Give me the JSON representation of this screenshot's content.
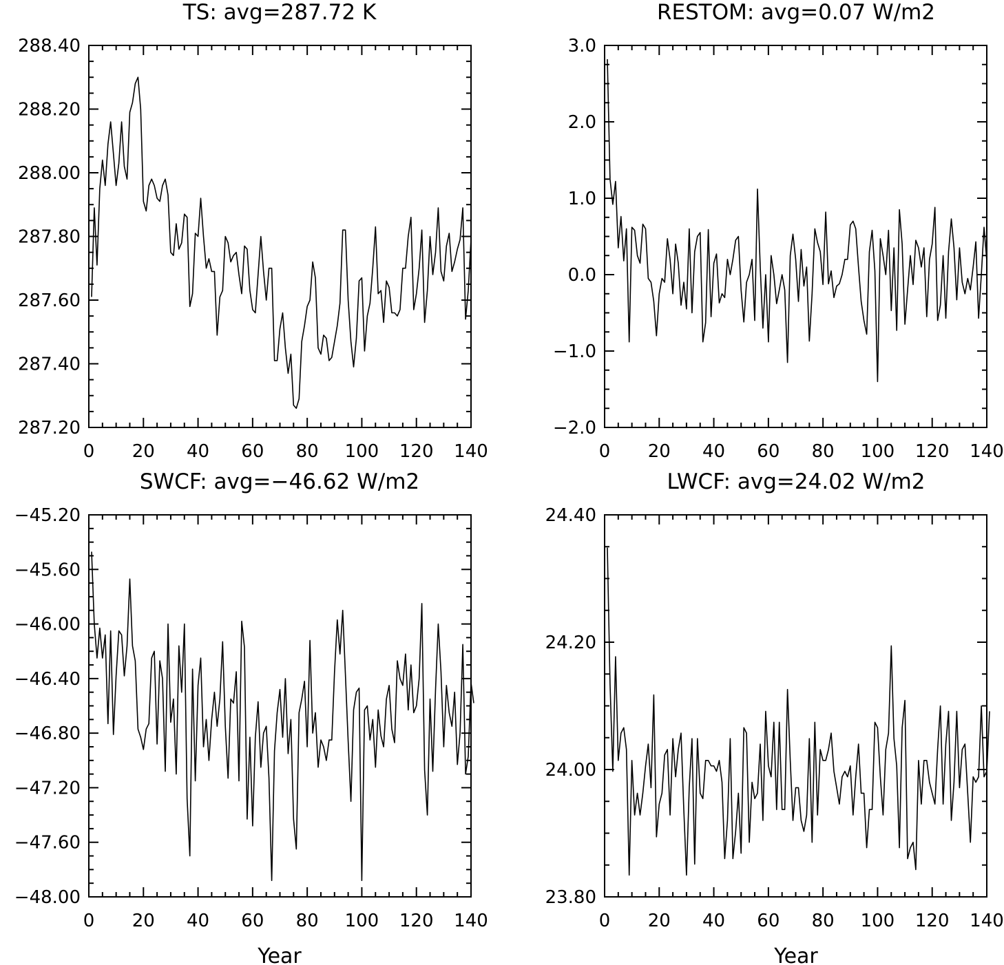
{
  "chart_data": [
    {
      "type": "line",
      "title": "TS: avg=287.72 K",
      "xlabel": "",
      "xlim": [
        0,
        140
      ],
      "ylim": [
        287.2,
        288.4
      ],
      "xticks": [
        "0",
        "20",
        "40",
        "60",
        "80",
        "100",
        "120",
        "140"
      ],
      "yticks": [
        "287.20",
        "287.40",
        "287.60",
        "287.80",
        "288.00",
        "288.20",
        "288.40"
      ],
      "series": [
        {
          "x_start": 1,
          "x_step": 1,
          "values": [
            287.61,
            287.89,
            287.71,
            287.95,
            288.04,
            287.96,
            288.09,
            288.16,
            288.06,
            287.96,
            288.03,
            288.16,
            288.02,
            287.98,
            288.19,
            288.22,
            288.28,
            288.3,
            288.2,
            287.91,
            287.88,
            287.96,
            287.98,
            287.96,
            287.92,
            287.91,
            287.96,
            287.98,
            287.93,
            287.75,
            287.74,
            287.84,
            287.76,
            287.78,
            287.87,
            287.86,
            287.58,
            287.62,
            287.81,
            287.8,
            287.92,
            287.8,
            287.7,
            287.73,
            287.69,
            287.69,
            287.49,
            287.61,
            287.63,
            287.8,
            287.78,
            287.72,
            287.74,
            287.75,
            287.68,
            287.62,
            287.77,
            287.76,
            287.63,
            287.57,
            287.56,
            287.68,
            287.8,
            287.69,
            287.6,
            287.7,
            287.7,
            287.41,
            287.41,
            287.51,
            287.56,
            287.45,
            287.37,
            287.43,
            287.27,
            287.26,
            287.29,
            287.47,
            287.52,
            287.58,
            287.6,
            287.72,
            287.67,
            287.45,
            287.43,
            287.49,
            287.48,
            287.41,
            287.42,
            287.47,
            287.52,
            287.59,
            287.82,
            287.82,
            287.6,
            287.47,
            287.39,
            287.48,
            287.66,
            287.67,
            287.44,
            287.55,
            287.59,
            287.7,
            287.83,
            287.62,
            287.63,
            287.53,
            287.66,
            287.64,
            287.56,
            287.56,
            287.55,
            287.57,
            287.7,
            287.7,
            287.8,
            287.86,
            287.57,
            287.62,
            287.7,
            287.82,
            287.53,
            287.63,
            287.8,
            287.68,
            287.75,
            287.89,
            287.69,
            287.66,
            287.77,
            287.81,
            287.69,
            287.72,
            287.76,
            287.79,
            287.89,
            287.54,
            287.63,
            287.79
          ]
        }
      ]
    },
    {
      "type": "line",
      "title": "RESTOM: avg=0.07 W/m2",
      "xlabel": "",
      "xlim": [
        0,
        140
      ],
      "ylim": [
        -2.0,
        3.0
      ],
      "xticks": [
        "0",
        "20",
        "40",
        "60",
        "80",
        "100",
        "120",
        "140"
      ],
      "yticks": [
        "−2.0",
        "−1.0",
        "0.0",
        "1.0",
        "2.0",
        "3.0"
      ],
      "series": [
        {
          "x_start": 1,
          "x_step": 1,
          "values": [
            2.82,
            1.25,
            0.92,
            1.22,
            0.35,
            0.76,
            0.18,
            0.6,
            -0.88,
            0.62,
            0.58,
            0.25,
            0.15,
            0.66,
            0.6,
            -0.05,
            -0.1,
            -0.35,
            -0.8,
            -0.25,
            -0.05,
            -0.1,
            0.47,
            0.2,
            -0.25,
            0.4,
            0.15,
            -0.4,
            -0.1,
            -0.45,
            0.6,
            -0.5,
            0.3,
            0.5,
            0.55,
            -0.88,
            -0.63,
            0.59,
            -0.55,
            0.15,
            0.27,
            -0.37,
            -0.25,
            -0.3,
            0.2,
            0.0,
            0.2,
            0.45,
            0.5,
            -0.2,
            -0.62,
            -0.1,
            0.0,
            0.2,
            -0.6,
            1.12,
            0.1,
            -0.7,
            0.0,
            -0.88,
            0.25,
            0.0,
            -0.38,
            -0.2,
            0.0,
            -0.2,
            -1.15,
            0.25,
            0.53,
            0.2,
            -0.35,
            0.33,
            -0.15,
            0.1,
            -0.87,
            -0.25,
            0.6,
            0.42,
            0.3,
            -0.13,
            0.82,
            -0.12,
            0.05,
            -0.3,
            -0.15,
            -0.12,
            0.0,
            0.2,
            0.2,
            0.65,
            0.7,
            0.6,
            0.1,
            -0.35,
            -0.6,
            -0.78,
            0.3,
            0.58,
            0.05,
            -1.4,
            0.47,
            0.25,
            0.0,
            0.58,
            -0.47,
            0.35,
            -0.73,
            0.85,
            0.4,
            -0.65,
            -0.2,
            0.25,
            -0.13,
            0.45,
            0.35,
            0.1,
            0.35,
            -0.55,
            0.2,
            0.4,
            0.88,
            -0.6,
            -0.4,
            0.25,
            -0.57,
            0.3,
            0.73,
            0.35,
            -0.33,
            0.35,
            -0.1,
            -0.25,
            -0.05,
            -0.2,
            0.1,
            0.43,
            -0.57,
            0.0,
            0.62,
            0.18
          ]
        }
      ]
    },
    {
      "type": "line",
      "title": "SWCF: avg=−46.62 W/m2",
      "xlabel": "Year",
      "xlim": [
        0,
        140
      ],
      "ylim": [
        -48.0,
        -45.2
      ],
      "xticks": [
        "0",
        "20",
        "40",
        "60",
        "80",
        "100",
        "120",
        "140"
      ],
      "yticks": [
        "−48.00",
        "−47.60",
        "−47.20",
        "−46.80",
        "−46.40",
        "−46.00",
        "−45.60",
        "−45.20"
      ],
      "series": [
        {
          "x_start": 1,
          "x_step": 1,
          "values": [
            -45.47,
            -46.0,
            -46.25,
            -46.03,
            -46.25,
            -46.08,
            -46.73,
            -46.05,
            -46.81,
            -46.38,
            -46.05,
            -46.08,
            -46.38,
            -46.16,
            -45.67,
            -46.16,
            -46.27,
            -46.77,
            -46.83,
            -46.92,
            -46.77,
            -46.73,
            -46.25,
            -46.2,
            -46.88,
            -46.27,
            -46.4,
            -47.08,
            -46.0,
            -46.72,
            -46.55,
            -47.1,
            -46.16,
            -46.5,
            -46.0,
            -47.28,
            -47.7,
            -46.33,
            -47.15,
            -46.45,
            -46.25,
            -46.9,
            -46.7,
            -47.0,
            -46.7,
            -46.5,
            -46.75,
            -46.55,
            -46.13,
            -46.75,
            -47.13,
            -46.55,
            -46.58,
            -46.35,
            -47.15,
            -45.98,
            -46.17,
            -47.43,
            -46.83,
            -47.48,
            -46.83,
            -46.57,
            -47.05,
            -46.8,
            -46.75,
            -47.13,
            -47.88,
            -46.93,
            -46.65,
            -46.48,
            -46.83,
            -46.4,
            -46.95,
            -46.7,
            -47.43,
            -47.65,
            -46.65,
            -46.55,
            -46.42,
            -46.9,
            -46.12,
            -46.8,
            -46.65,
            -47.05,
            -46.85,
            -46.9,
            -47.0,
            -46.85,
            -46.85,
            -46.35,
            -45.97,
            -46.22,
            -45.9,
            -46.37,
            -46.86,
            -47.3,
            -46.63,
            -46.5,
            -46.47,
            -47.88,
            -46.63,
            -46.6,
            -46.85,
            -46.7,
            -47.05,
            -46.63,
            -46.82,
            -46.9,
            -46.55,
            -46.45,
            -46.77,
            -46.87,
            -46.27,
            -46.4,
            -46.45,
            -46.22,
            -46.63,
            -46.3,
            -46.65,
            -46.6,
            -46.4,
            -45.85,
            -47.07,
            -47.4,
            -46.55,
            -47.08,
            -46.48,
            -46.0,
            -46.35,
            -46.9,
            -46.45,
            -46.65,
            -46.75,
            -46.5,
            -47.03,
            -46.8,
            -46.15,
            -47.1,
            -46.97,
            -46.43,
            -46.58
          ]
        }
      ]
    },
    {
      "type": "line",
      "title": "LWCF: avg=24.02 W/m2",
      "xlabel": "Year",
      "xlim": [
        0,
        140
      ],
      "ylim": [
        23.8,
        24.5
      ],
      "xticks": [
        "0",
        "20",
        "40",
        "60",
        "80",
        "100",
        "120",
        "140"
      ],
      "yticks": [
        "23.80",
        "24.00",
        "24.20",
        "24.40"
      ],
      "series": [
        {
          "x_start": 1,
          "x_step": 1,
          "values": [
            24.44,
            24.19,
            24.03,
            24.24,
            24.05,
            24.1,
            24.11,
            24.07,
            23.84,
            24.05,
            23.95,
            23.99,
            23.95,
            23.99,
            24.04,
            24.08,
            24.0,
            24.17,
            23.91,
            23.97,
            23.99,
            24.06,
            24.07,
            23.95,
            24.09,
            24.02,
            24.07,
            24.1,
            23.96,
            23.84,
            24.0,
            24.09,
            23.86,
            24.09,
            23.99,
            23.98,
            24.05,
            24.05,
            24.04,
            24.04,
            24.03,
            24.05,
            24.01,
            23.87,
            23.94,
            24.09,
            23.87,
            23.92,
            23.99,
            23.88,
            24.11,
            24.1,
            23.9,
            24.01,
            23.98,
            23.99,
            24.08,
            23.94,
            24.14,
            24.04,
            24.02,
            24.12,
            23.96,
            24.12,
            23.96,
            23.96,
            24.18,
            24.05,
            23.94,
            24.0,
            24.0,
            23.94,
            23.92,
            23.95,
            24.09,
            23.9,
            24.12,
            23.95,
            24.07,
            24.05,
            24.05,
            24.07,
            24.1,
            24.03,
            24.0,
            23.97,
            24.02,
            24.03,
            24.02,
            24.04,
            23.95,
            24.02,
            24.08,
            23.99,
            23.99,
            23.89,
            23.96,
            23.96,
            24.12,
            24.11,
            24.02,
            23.95,
            24.07,
            24.1,
            24.26,
            24.09,
            24.04,
            23.89,
            24.11,
            24.16,
            23.87,
            23.89,
            23.9,
            23.85,
            24.05,
            23.97,
            24.05,
            24.05,
            24.01,
            23.99,
            23.97,
            24.07,
            24.15,
            23.97,
            24.08,
            24.14,
            23.94,
            24.01,
            24.14,
            24.0,
            24.07,
            24.08,
            23.99,
            23.9,
            24.02,
            24.01,
            24.02,
            24.15,
            24.02,
            24.03,
            24.14
          ]
        }
      ]
    }
  ]
}
